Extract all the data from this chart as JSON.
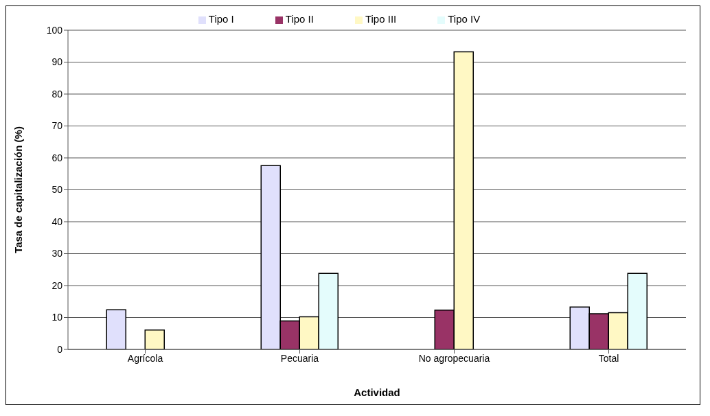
{
  "chart_data": {
    "type": "bar",
    "xlabel": "Actividad",
    "ylabel": "Tasa de capitalización (%)",
    "categories": [
      "Agrícola",
      "Pecuaria",
      "No agropecuaria",
      "Total"
    ],
    "series": [
      {
        "name": "Tipo I",
        "color": "#e0e0fc",
        "values": [
          12.4,
          57.6,
          null,
          13.3
        ]
      },
      {
        "name": "Tipo II",
        "color": "#993366",
        "values": [
          null,
          8.9,
          12.3,
          11.2
        ]
      },
      {
        "name": "Tipo III",
        "color": "#fff8c4",
        "values": [
          6.1,
          10.2,
          93.2,
          11.5
        ]
      },
      {
        "name": "Tipo IV",
        "color": "#e4fcfc",
        "values": [
          null,
          23.8,
          null,
          23.8
        ]
      }
    ],
    "ylim": [
      0,
      100
    ],
    "yticks": [
      0,
      10,
      20,
      30,
      40,
      50,
      60,
      70,
      80,
      90,
      100
    ],
    "grid": "y",
    "legend": "top"
  }
}
